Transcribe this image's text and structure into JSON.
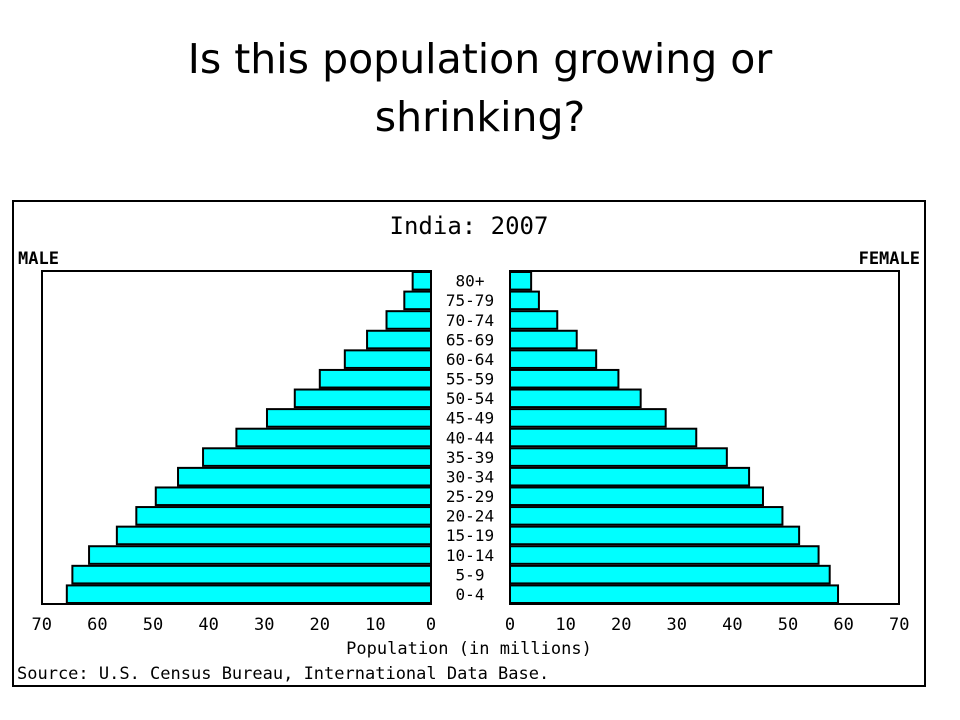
{
  "slide": {
    "title_line1": "Is this population growing or",
    "title_line2": "shrinking?"
  },
  "chart_data": {
    "type": "bar",
    "subtype": "population-pyramid",
    "title": "India: 2007",
    "left_label": "MALE",
    "right_label": "FEMALE",
    "xlabel": "Population (in millions)",
    "source": "Source: U.S. Census Bureau, International Data Base.",
    "xlim": [
      0,
      70
    ],
    "ticks": [
      "70",
      "60",
      "50",
      "40",
      "30",
      "20",
      "10",
      "0"
    ],
    "ticks_right": [
      "0",
      "10",
      "20",
      "30",
      "40",
      "50",
      "60",
      "70"
    ],
    "categories": [
      "80+",
      "75-79",
      "70-74",
      "65-69",
      "60-64",
      "55-59",
      "50-54",
      "45-49",
      "40-44",
      "35-39",
      "30-34",
      "25-29",
      "20-24",
      "15-19",
      "10-14",
      "5-9",
      "0-4"
    ],
    "series": [
      {
        "name": "MALE",
        "values": [
          3.3,
          4.8,
          8.0,
          11.5,
          15.5,
          20.0,
          24.5,
          29.5,
          35.0,
          41.0,
          45.5,
          49.5,
          53.0,
          56.5,
          61.5,
          64.5,
          65.5
        ]
      },
      {
        "name": "FEMALE",
        "values": [
          3.8,
          5.2,
          8.5,
          12.0,
          15.5,
          19.5,
          23.5,
          28.0,
          33.5,
          39.0,
          43.0,
          45.5,
          49.0,
          52.0,
          55.5,
          57.5,
          59.0
        ]
      }
    ],
    "bar_color": "#00FFFF",
    "grid": false,
    "legend": "none"
  }
}
